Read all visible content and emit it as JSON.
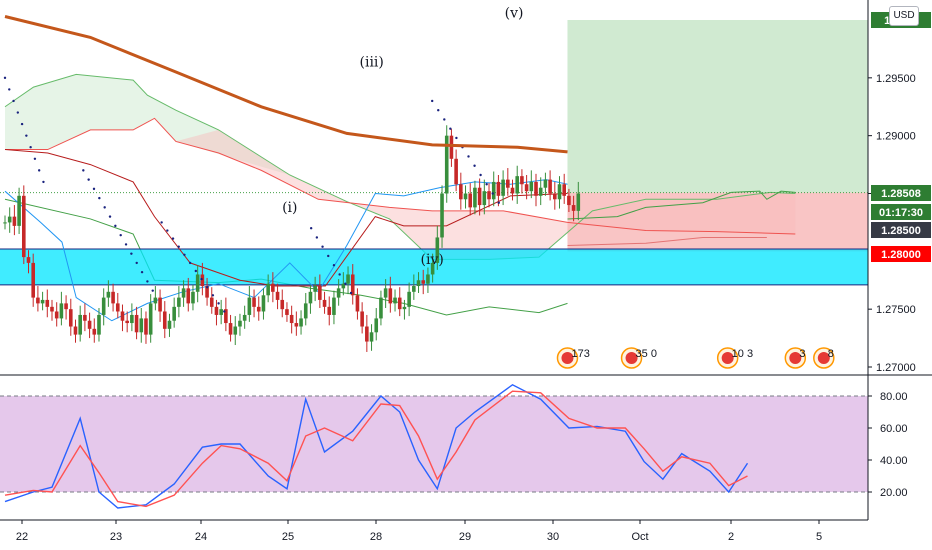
{
  "currency_button": "USD",
  "chart_data": [
    {
      "type": "candlestick",
      "yaxis": {
        "ticks": [
          "1.29500",
          "1.29000",
          "1.28500",
          "1.27500",
          "1.27000"
        ],
        "tick_values": [
          1.295,
          1.29,
          1.285,
          1.275,
          1.27
        ]
      },
      "xaxis": {
        "ticks": [
          "22",
          "23",
          "24",
          "25",
          "28",
          "29",
          "30",
          "Oct",
          "2",
          "5"
        ],
        "tick_index": [
          0,
          24,
          48,
          72,
          96,
          120,
          144,
          168,
          192,
          216
        ]
      },
      "price_badges": [
        {
          "label": "1.3000",
          "value": 1.3,
          "color": "#2e7d32",
          "note": "take profit"
        },
        {
          "label": "1.28508",
          "value": 1.28508,
          "color": "#2e7d32",
          "note": "last price"
        },
        {
          "label": "01:17:30",
          "value": 1.28425,
          "color": "#2e7d32",
          "note": "countdown"
        },
        {
          "label": "1.28500",
          "value": 1.285,
          "color": "#363a45",
          "note": "line level"
        },
        {
          "label": "1.28000",
          "value": 1.28,
          "color": "#ff0000",
          "note": "stop level"
        }
      ],
      "wave_labels": [
        {
          "text": "(i)",
          "index": 80,
          "value": 1.2834
        },
        {
          "text": "(iii)",
          "index": 103,
          "value": 1.296
        },
        {
          "text": "(iv)",
          "index": 120,
          "value": 1.2789
        },
        {
          "text": "(v)",
          "index": 143,
          "value": 1.3002
        }
      ],
      "support_zone": {
        "top": 1.2802,
        "bottom": 1.2771,
        "color": "#00e5ff"
      },
      "long_position": {
        "start_index": 158,
        "end_index": 232,
        "entry": 1.28508,
        "target": 1.3,
        "stop": 1.28
      },
      "moving_average": {
        "color": "#c4571b",
        "points": [
          [
            0,
            1.3003
          ],
          [
            24,
            1.2985
          ],
          [
            48,
            1.2955
          ],
          [
            72,
            1.2925
          ],
          [
            96,
            1.2902
          ],
          [
            120,
            1.2892
          ],
          [
            144,
            1.289
          ],
          [
            158,
            1.2886
          ]
        ]
      },
      "event_markers": [
        {
          "index": 158,
          "label": "173"
        },
        {
          "index": 176,
          "label": "35 0"
        },
        {
          "index": 203,
          "label": "10 3"
        },
        {
          "index": 222,
          "label": "3"
        },
        {
          "index": 230,
          "label": "8"
        }
      ]
    },
    {
      "type": "line",
      "name": "stochastic",
      "yaxis": {
        "ticks": [
          "80.00",
          "60.00",
          "40.00",
          "20.00"
        ],
        "tick_values": [
          80,
          60,
          40,
          20
        ]
      },
      "band": {
        "upper": 80,
        "lower": 20,
        "color": "#e1bee7"
      },
      "series": [
        {
          "color": "#2962ff",
          "points": [
            [
              0,
              14
            ],
            [
              6,
              20
            ],
            [
              10,
              23
            ],
            [
              16,
              66
            ],
            [
              20,
              20
            ],
            [
              24,
              10
            ],
            [
              30,
              12
            ],
            [
              36,
              25
            ],
            [
              42,
              48
            ],
            [
              46,
              50
            ],
            [
              50,
              50
            ],
            [
              56,
              30
            ],
            [
              60,
              22
            ],
            [
              64,
              78
            ],
            [
              68,
              45
            ],
            [
              74,
              58
            ],
            [
              80,
              80
            ],
            [
              84,
              70
            ],
            [
              88,
              40
            ],
            [
              92,
              22
            ],
            [
              96,
              60
            ],
            [
              100,
              70
            ],
            [
              108,
              87
            ],
            [
              114,
              78
            ],
            [
              120,
              60
            ],
            [
              126,
              61
            ],
            [
              132,
              58
            ],
            [
              136,
              39
            ],
            [
              140,
              28
            ],
            [
              144,
              44
            ],
            [
              150,
              33
            ],
            [
              154,
              20
            ],
            [
              158,
              38
            ]
          ]
        },
        {
          "color": "#ff5252",
          "points": [
            [
              0,
              18
            ],
            [
              6,
              21
            ],
            [
              10,
              20
            ],
            [
              16,
              49
            ],
            [
              20,
              32
            ],
            [
              24,
              14
            ],
            [
              30,
              11
            ],
            [
              36,
              18
            ],
            [
              42,
              38
            ],
            [
              46,
              49
            ],
            [
              50,
              47
            ],
            [
              56,
              38
            ],
            [
              60,
              27
            ],
            [
              64,
              55
            ],
            [
              68,
              60
            ],
            [
              74,
              52
            ],
            [
              80,
              75
            ],
            [
              84,
              74
            ],
            [
              88,
              55
            ],
            [
              92,
              28
            ],
            [
              96,
              45
            ],
            [
              100,
              65
            ],
            [
              108,
              83
            ],
            [
              114,
              82
            ],
            [
              120,
              66
            ],
            [
              126,
              60
            ],
            [
              132,
              60
            ],
            [
              136,
              47
            ],
            [
              140,
              33
            ],
            [
              144,
              42
            ],
            [
              150,
              38
            ],
            [
              154,
              24
            ],
            [
              158,
              30
            ]
          ]
        }
      ]
    }
  ]
}
